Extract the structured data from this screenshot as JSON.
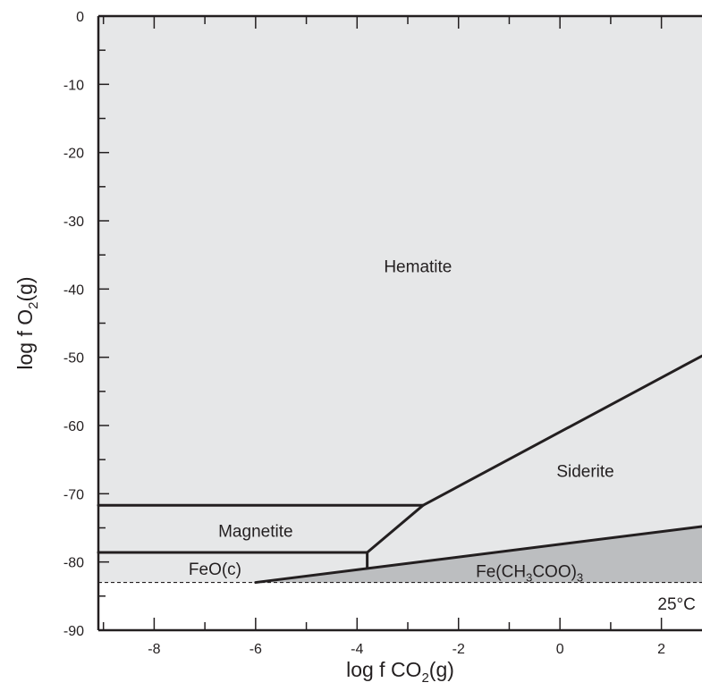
{
  "chart_data": {
    "type": "area",
    "title": "",
    "xlabel": {
      "prefix": "log f CO",
      "sub": "2",
      "suffix": "(g)"
    },
    "ylabel": {
      "prefix": "log f O",
      "sub": "2",
      "suffix": "(g)"
    },
    "xlim": [
      -9.1,
      2.8
    ],
    "ylim": [
      -90,
      0
    ],
    "xticks": [
      -8,
      -6,
      -4,
      -2,
      0,
      2
    ],
    "xtick_labels": [
      "-8",
      "-6",
      "-4",
      "-2",
      "0",
      "2"
    ],
    "yticks": [
      0,
      -10,
      -20,
      -30,
      -40,
      -50,
      -60,
      -70,
      -80,
      -90
    ],
    "ytick_labels": [
      "0",
      "-10",
      "-20",
      "-30",
      "-40",
      "-50",
      "-60",
      "-70",
      "-80",
      "-90"
    ],
    "grid": false,
    "fields": [
      {
        "name": "Hematite",
        "label_at": [
          -2.8,
          -37.5
        ],
        "polygon": [
          [
            -9.1,
            0
          ],
          [
            2.8,
            0
          ],
          [
            2.8,
            -49.8
          ],
          [
            -2.7,
            -71.7
          ],
          [
            -9.1,
            -71.7
          ]
        ]
      },
      {
        "name": "Siderite",
        "label_at": [
          0.5,
          -67.5
        ],
        "polygon": [
          [
            -2.7,
            -71.7
          ],
          [
            2.8,
            -49.8
          ],
          [
            2.8,
            -74.8
          ],
          [
            -3.8,
            -80.9
          ],
          [
            -3.8,
            -78.6
          ]
        ]
      },
      {
        "name": "Magnetite",
        "label_at": [
          -6.0,
          -76.3
        ],
        "polygon": [
          [
            -9.1,
            -71.7
          ],
          [
            -2.7,
            -71.7
          ],
          [
            -3.8,
            -78.6
          ],
          [
            -9.1,
            -78.6
          ]
        ]
      },
      {
        "name": "FeO(c)",
        "label_at": [
          -6.8,
          -81.9
        ],
        "polygon": [
          [
            -9.1,
            -78.6
          ],
          [
            -3.8,
            -78.6
          ],
          [
            -3.8,
            -80.9
          ],
          [
            -6.0,
            -83.0
          ],
          [
            -9.1,
            -83.0
          ]
        ]
      },
      {
        "name": "Fe(CH3COO)3",
        "label_at": [
          -0.6,
          -82.2
        ],
        "label_parts": {
          "prefix": "Fe(CH",
          "sub": "3",
          "middle": "COO)",
          "sub2": "3"
        },
        "polygon": [
          [
            -6.0,
            -83.0
          ],
          [
            -3.8,
            -80.9
          ],
          [
            2.8,
            -74.8
          ],
          [
            2.8,
            -83.0
          ]
        ]
      }
    ],
    "boundaries": [
      [
        [
          -9.1,
          -71.7
        ],
        [
          -2.7,
          -71.7
        ]
      ],
      [
        [
          -2.7,
          -71.7
        ],
        [
          2.8,
          -49.8
        ]
      ],
      [
        [
          -2.7,
          -71.7
        ],
        [
          -3.8,
          -78.6
        ]
      ],
      [
        [
          -9.1,
          -78.6
        ],
        [
          -3.8,
          -78.6
        ]
      ],
      [
        [
          -3.8,
          -78.6
        ],
        [
          -3.8,
          -80.9
        ]
      ],
      [
        [
          -6.0,
          -83.0
        ],
        [
          2.8,
          -74.8
        ]
      ]
    ],
    "dashed_line": {
      "y": -83.0,
      "style": "dashed"
    },
    "annotation": {
      "text": "25°C",
      "at": [
        2.3,
        -87
      ]
    },
    "colors": {
      "field": "#e6e7e8",
      "acetate_field": "#bcbec0",
      "line": "#231f20",
      "text": "#231f20"
    }
  }
}
